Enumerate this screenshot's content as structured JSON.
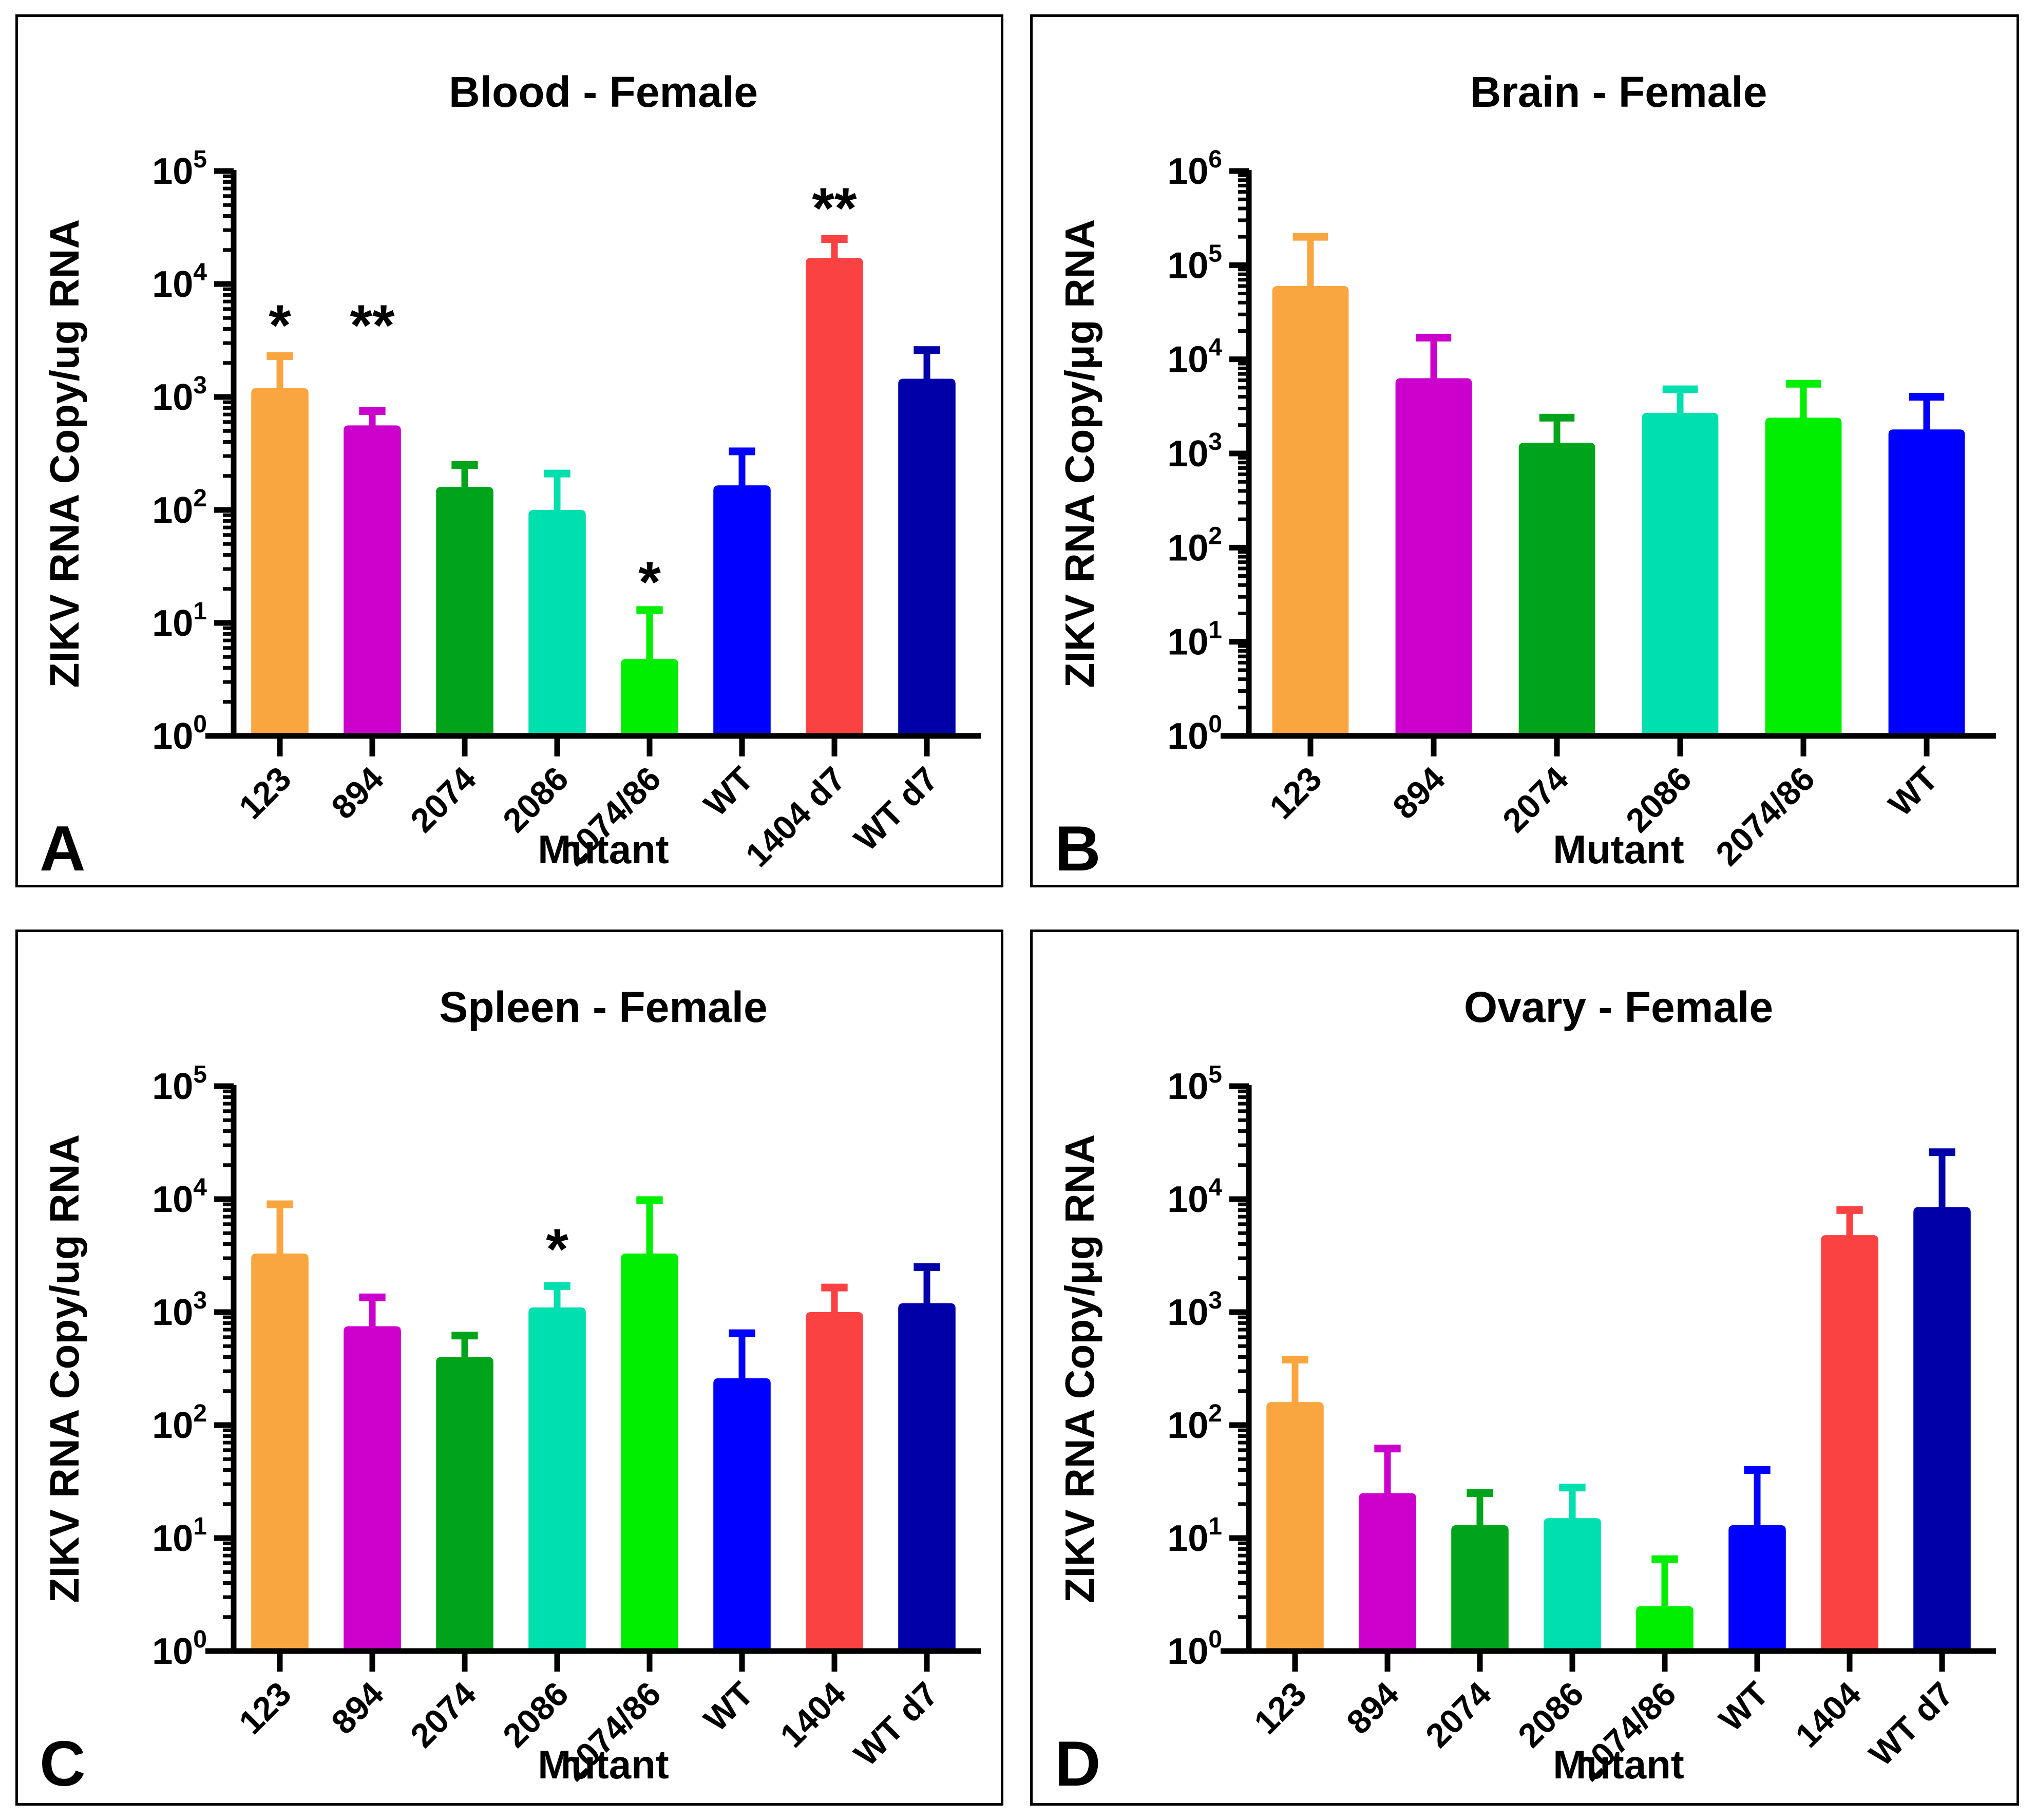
{
  "figure": {
    "background": "#ffffff",
    "border_color": "#000000"
  },
  "palette": {
    "orange": "#FAA640",
    "magenta": "#CC00CC",
    "green": "#00A41A",
    "teal": "#00DFAE",
    "bright_green": "#00EE00",
    "blue": "#0000FF",
    "red": "#FB4242",
    "navy": "#0000A8",
    "axis": "#000000"
  },
  "chart_data": [
    {
      "panel_letter": "A",
      "type": "bar",
      "title": "Blood - Female",
      "xlabel": "Mutant",
      "ylabel": "ZIKV RNA Copy/ug RNA",
      "yscale": "log",
      "ylim": [
        1,
        100000
      ],
      "ytick_exponents": [
        0,
        1,
        2,
        3,
        4,
        5
      ],
      "grid": false,
      "legend": "none",
      "categories": [
        "123",
        "894",
        "2074",
        "2086",
        "2074/86",
        "WT",
        "1404 d7",
        "WT d7"
      ],
      "values": [
        1200,
        560,
        160,
        100,
        4.8,
        165,
        17000,
        1450
      ],
      "errors_top": [
        2300,
        750,
        250,
        210,
        13,
        330,
        25000,
        2600
      ],
      "bar_colors": [
        "#FAA640",
        "#CC00CC",
        "#00A41A",
        "#00DFAE",
        "#00EE00",
        "#0000FF",
        "#FB4242",
        "#0000A8"
      ],
      "annotations": [
        {
          "bar_index": 0,
          "text": "*",
          "y": 6000
        },
        {
          "bar_index": 1,
          "text": "**",
          "y": 6000
        },
        {
          "bar_index": 4,
          "text": "*",
          "y": 32
        },
        {
          "bar_index": 6,
          "text": "**",
          "y": 65000
        }
      ]
    },
    {
      "panel_letter": "B",
      "type": "bar",
      "title": "Brain - Female",
      "xlabel": "Mutant",
      "ylabel": "ZIKV RNA Copy/μg RNA",
      "yscale": "log",
      "ylim": [
        1,
        1000000
      ],
      "ytick_exponents": [
        0,
        1,
        2,
        3,
        4,
        5,
        6
      ],
      "grid": false,
      "legend": "none",
      "categories": [
        "123",
        "894",
        "2074",
        "2086",
        "2074/86",
        "WT"
      ],
      "values": [
        60000,
        6300,
        1300,
        2700,
        2400,
        1800
      ],
      "errors_top": [
        200000,
        17000,
        2400,
        4800,
        5500,
        4000
      ],
      "bar_colors": [
        "#FAA640",
        "#CC00CC",
        "#00A41A",
        "#00DFAE",
        "#00EE00",
        "#0000FF"
      ],
      "annotations": []
    },
    {
      "panel_letter": "C",
      "type": "bar",
      "title": "Spleen - Female",
      "xlabel": "Mutant",
      "ylabel": "ZIKV RNA Copy/ug RNA",
      "yscale": "log",
      "ylim": [
        1,
        100000
      ],
      "ytick_exponents": [
        0,
        1,
        2,
        3,
        4,
        5
      ],
      "grid": false,
      "legend": "none",
      "categories": [
        "123",
        "894",
        "2074",
        "2086",
        "2074/86",
        "WT",
        "1404",
        "WT d7"
      ],
      "values": [
        3300,
        750,
        400,
        1100,
        3300,
        260,
        1000,
        1200
      ],
      "errors_top": [
        9000,
        1350,
        620,
        1700,
        9800,
        650,
        1650,
        2500
      ],
      "bar_colors": [
        "#FAA640",
        "#CC00CC",
        "#00A41A",
        "#00DFAE",
        "#00EE00",
        "#0000FF",
        "#FB4242",
        "#0000A8"
      ],
      "annotations": [
        {
          "bar_index": 3,
          "text": "*",
          "y": 5000
        }
      ]
    },
    {
      "panel_letter": "D",
      "type": "bar",
      "title": "Ovary - Female",
      "xlabel": "Mutant",
      "ylabel": "ZIKV RNA Copy/μg RNA",
      "yscale": "log",
      "ylim": [
        1,
        100000
      ],
      "ytick_exponents": [
        0,
        1,
        2,
        3,
        4,
        5
      ],
      "grid": false,
      "legend": "none",
      "categories": [
        "123",
        "894",
        "2074",
        "2086",
        "2074/86",
        "WT",
        "1404",
        "WT d7"
      ],
      "values": [
        160,
        25,
        13,
        15,
        2.5,
        13,
        4800,
        8500
      ],
      "errors_top": [
        380,
        62,
        25,
        28,
        6.5,
        40,
        8000,
        26000
      ],
      "bar_colors": [
        "#FAA640",
        "#CC00CC",
        "#00A41A",
        "#00DFAE",
        "#00EE00",
        "#0000FF",
        "#FB4242",
        "#0000A8"
      ],
      "annotations": []
    }
  ]
}
